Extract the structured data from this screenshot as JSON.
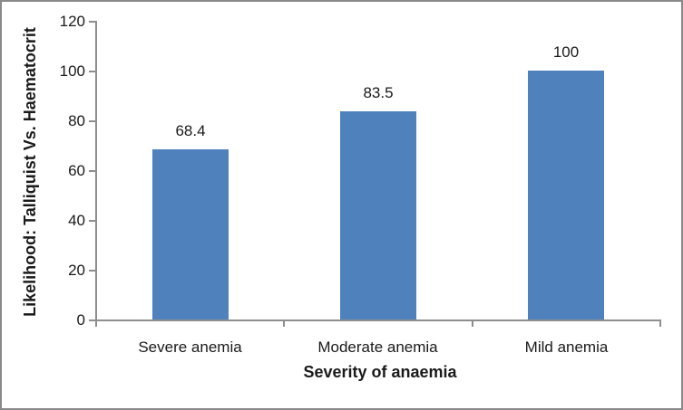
{
  "chart_data": {
    "type": "bar",
    "categories": [
      "Severe anemia",
      "Moderate anemia",
      "Mild anemia"
    ],
    "values": [
      68.4,
      83.5,
      100
    ],
    "data_labels": [
      "68.4",
      "83.5",
      "100"
    ],
    "title": "",
    "xlabel": "Severity of anaemia",
    "ylabel": "Likelihood: Talliquist Vs. Haematocrit",
    "ylim": [
      0,
      120
    ],
    "ytick_step": 20,
    "ytick_labels": [
      "0",
      "20",
      "40",
      "60",
      "80",
      "100",
      "120"
    ],
    "grid": false,
    "legend": "none",
    "bar_color": "#4F81BD",
    "axis_color": "#8E8E8E",
    "text_color": "#1a1a1a",
    "frame_border_color": "#898989"
  }
}
